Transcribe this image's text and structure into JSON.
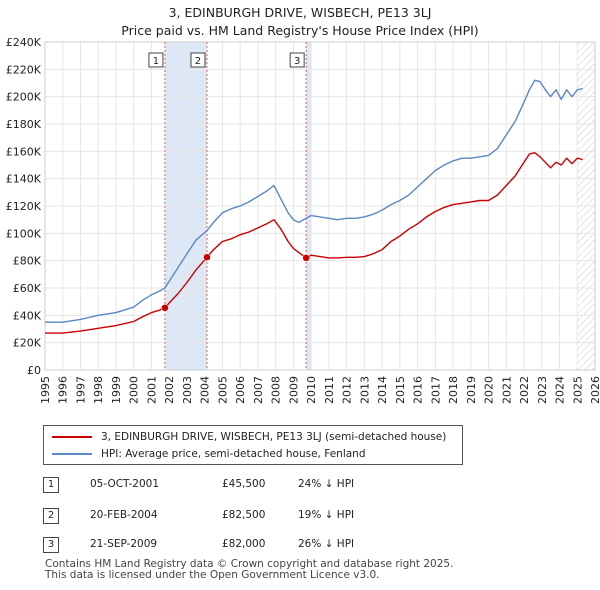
{
  "header": {
    "title": "3, EDINBURGH DRIVE, WISBECH, PE13 3LJ",
    "subtitle": "Price paid vs. HM Land Registry's House Price Index (HPI)"
  },
  "colors": {
    "price": "#cc0000",
    "hpi": "#5b87c4",
    "shade": "#dde8f7",
    "marker_line": "#e06060"
  },
  "legend": {
    "price_label": "3, EDINBURGH DRIVE, WISBECH, PE13 3LJ (semi-detached house)",
    "hpi_label": "HPI: Average price, semi-detached house, Fenland"
  },
  "transactions": [
    {
      "num": "1",
      "date": "05-OCT-2001",
      "price": "£45,500",
      "hpi": "24% ↓ HPI"
    },
    {
      "num": "2",
      "date": "20-FEB-2004",
      "price": "£82,500",
      "hpi": "19% ↓ HPI"
    },
    {
      "num": "3",
      "date": "21-SEP-2009",
      "price": "£82,000",
      "hpi": "26% ↓ HPI"
    }
  ],
  "footer": {
    "line1": "Contains HM Land Registry data © Crown copyright and database right 2025.",
    "line2": "This data is licensed under the Open Government Licence v3.0."
  },
  "chart_data": {
    "type": "line",
    "ylim": [
      0,
      240000
    ],
    "xlim": [
      1995,
      2026
    ],
    "yticks": [
      0,
      20000,
      40000,
      60000,
      80000,
      100000,
      120000,
      140000,
      160000,
      180000,
      200000,
      220000,
      240000
    ],
    "ytick_labels": [
      "£0",
      "£20K",
      "£40K",
      "£60K",
      "£80K",
      "£100K",
      "£120K",
      "£140K",
      "£160K",
      "£180K",
      "£200K",
      "£220K",
      "£240K"
    ],
    "xticks": [
      1995,
      1996,
      1997,
      1998,
      1999,
      2000,
      2001,
      2002,
      2003,
      2004,
      2005,
      2006,
      2007,
      2008,
      2009,
      2010,
      2011,
      2012,
      2013,
      2014,
      2015,
      2016,
      2017,
      2018,
      2019,
      2020,
      2021,
      2022,
      2023,
      2024,
      2025,
      2026
    ],
    "xtick_labels": [
      "1995",
      "1996",
      "1997",
      "1998",
      "1999",
      "2000",
      "2001",
      "2002",
      "2003",
      "2004",
      "2005",
      "2006",
      "2007",
      "2008",
      "2009",
      "2010",
      "2011",
      "2012",
      "2013",
      "2014",
      "2015",
      "2016",
      "2017",
      "2018",
      "2019",
      "2020",
      "2021",
      "2022",
      "2023",
      "2024",
      "2025",
      "2026"
    ],
    "grid": true,
    "shaded_regions": [
      [
        2001.76,
        2004.13
      ],
      [
        2009.72,
        2010.0
      ]
    ],
    "hatched_region": [
      2025.0,
      2026.0
    ],
    "series": [
      {
        "name": "HPI: Average price, semi-detached house, Fenland",
        "x": [
          1995.0,
          1996.0,
          1997.0,
          1998.0,
          1999.0,
          2000.0,
          2000.5,
          2001.0,
          2001.5,
          2001.76,
          2002.0,
          2002.5,
          2003.0,
          2003.5,
          2004.13,
          2004.5,
          2005.0,
          2005.5,
          2006.0,
          2006.5,
          2007.0,
          2007.5,
          2007.9,
          2008.3,
          2008.7,
          2009.0,
          2009.3,
          2009.72,
          2010.0,
          2010.5,
          2011.0,
          2011.5,
          2012.0,
          2012.5,
          2013.0,
          2013.5,
          2014.0,
          2014.5,
          2015.0,
          2015.5,
          2016.0,
          2016.5,
          2017.0,
          2017.5,
          2018.0,
          2018.5,
          2019.0,
          2019.5,
          2020.0,
          2020.5,
          2021.0,
          2021.5,
          2022.0,
          2022.3,
          2022.6,
          2022.9,
          2023.2,
          2023.5,
          2023.8,
          2024.1,
          2024.4,
          2024.7,
          2025.0,
          2025.3
        ],
        "values": [
          35000,
          35000,
          37000,
          40000,
          42000,
          46000,
          51000,
          55000,
          58000,
          60000,
          65000,
          75000,
          85000,
          95000,
          102000,
          108000,
          115000,
          118000,
          120000,
          123000,
          127000,
          131000,
          135000,
          125000,
          115000,
          110000,
          108000,
          111000,
          113000,
          112000,
          111000,
          110000,
          111000,
          111000,
          112000,
          114000,
          117000,
          121000,
          124000,
          128000,
          134000,
          140000,
          146000,
          150000,
          153000,
          155000,
          155000,
          156000,
          157000,
          162000,
          172000,
          182000,
          196000,
          205000,
          212000,
          211000,
          205000,
          200000,
          205000,
          198000,
          205000,
          200000,
          205000,
          206000
        ]
      },
      {
        "name": "3, EDINBURGH DRIVE, WISBECH, PE13 3LJ (semi-detached house)",
        "x": [
          1995.0,
          1996.0,
          1997.0,
          1998.0,
          1999.0,
          2000.0,
          2000.5,
          2001.0,
          2001.5,
          2001.76,
          2002.0,
          2002.5,
          2003.0,
          2003.5,
          2004.13,
          2004.5,
          2005.0,
          2005.5,
          2006.0,
          2006.5,
          2007.0,
          2007.5,
          2007.9,
          2008.3,
          2008.7,
          2009.0,
          2009.3,
          2009.72,
          2010.0,
          2010.5,
          2011.0,
          2011.5,
          2012.0,
          2012.5,
          2013.0,
          2013.5,
          2014.0,
          2014.5,
          2015.0,
          2015.5,
          2016.0,
          2016.5,
          2017.0,
          2017.5,
          2018.0,
          2018.5,
          2019.0,
          2019.5,
          2020.0,
          2020.5,
          2021.0,
          2021.5,
          2022.0,
          2022.3,
          2022.6,
          2022.9,
          2023.2,
          2023.5,
          2023.8,
          2024.1,
          2024.4,
          2024.7,
          2025.0,
          2025.3
        ],
        "values": [
          27000,
          27000,
          28500,
          30500,
          32500,
          35500,
          39000,
          42000,
          44000,
          45500,
          49000,
          56000,
          64000,
          73000,
          82500,
          88000,
          94000,
          96000,
          99000,
          101000,
          104000,
          107000,
          110000,
          103000,
          94000,
          89000,
          86000,
          82000,
          84000,
          83000,
          82000,
          82000,
          82500,
          82500,
          83000,
          85000,
          88000,
          94000,
          98000,
          103000,
          107000,
          112000,
          116000,
          119000,
          121000,
          122000,
          123000,
          124000,
          124000,
          128000,
          135000,
          142000,
          152000,
          158000,
          159000,
          156000,
          152000,
          148000,
          152000,
          150000,
          155000,
          151000,
          155000,
          154000
        ]
      }
    ],
    "markers": [
      {
        "label": "1",
        "x": 2001.76,
        "value": 45500
      },
      {
        "label": "2",
        "x": 2004.13,
        "value": 82500
      },
      {
        "label": "3",
        "x": 2009.72,
        "value": 82000
      }
    ]
  }
}
